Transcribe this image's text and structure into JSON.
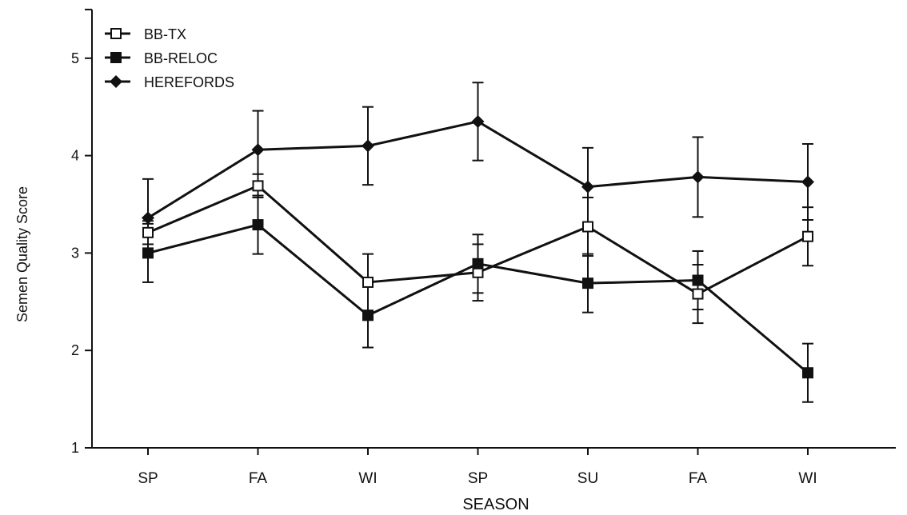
{
  "chart_data": {
    "type": "line",
    "xlabel": "SEASON",
    "ylabel": "Semen Quality Score",
    "categories": [
      "SP",
      "FA",
      "WI",
      "SP",
      "SU",
      "FA",
      "WI"
    ],
    "ylim": [
      1,
      5.5
    ],
    "yticks": [
      1,
      2,
      3,
      4,
      5
    ],
    "grid": false,
    "legend_position": "top-left",
    "series": [
      {
        "name": "BB-TX",
        "marker": "open-square",
        "values": [
          3.21,
          3.69,
          2.7,
          2.8,
          3.27,
          2.58,
          3.17
        ],
        "errors": [
          0.12,
          0.12,
          0.29,
          0.29,
          0.3,
          0.3,
          0.3
        ]
      },
      {
        "name": "BB-RELOC",
        "marker": "filled-square",
        "values": [
          3.0,
          3.29,
          2.36,
          2.89,
          2.69,
          2.72,
          1.77
        ],
        "errors": [
          0.3,
          0.3,
          0.33,
          0.3,
          0.3,
          0.3,
          0.3
        ]
      },
      {
        "name": "HEREFORDS",
        "marker": "filled-diamond",
        "values": [
          3.36,
          4.06,
          4.1,
          4.35,
          3.68,
          3.78,
          3.73
        ],
        "errors": [
          0.4,
          0.4,
          0.4,
          0.4,
          0.4,
          0.41,
          0.39
        ]
      }
    ]
  }
}
